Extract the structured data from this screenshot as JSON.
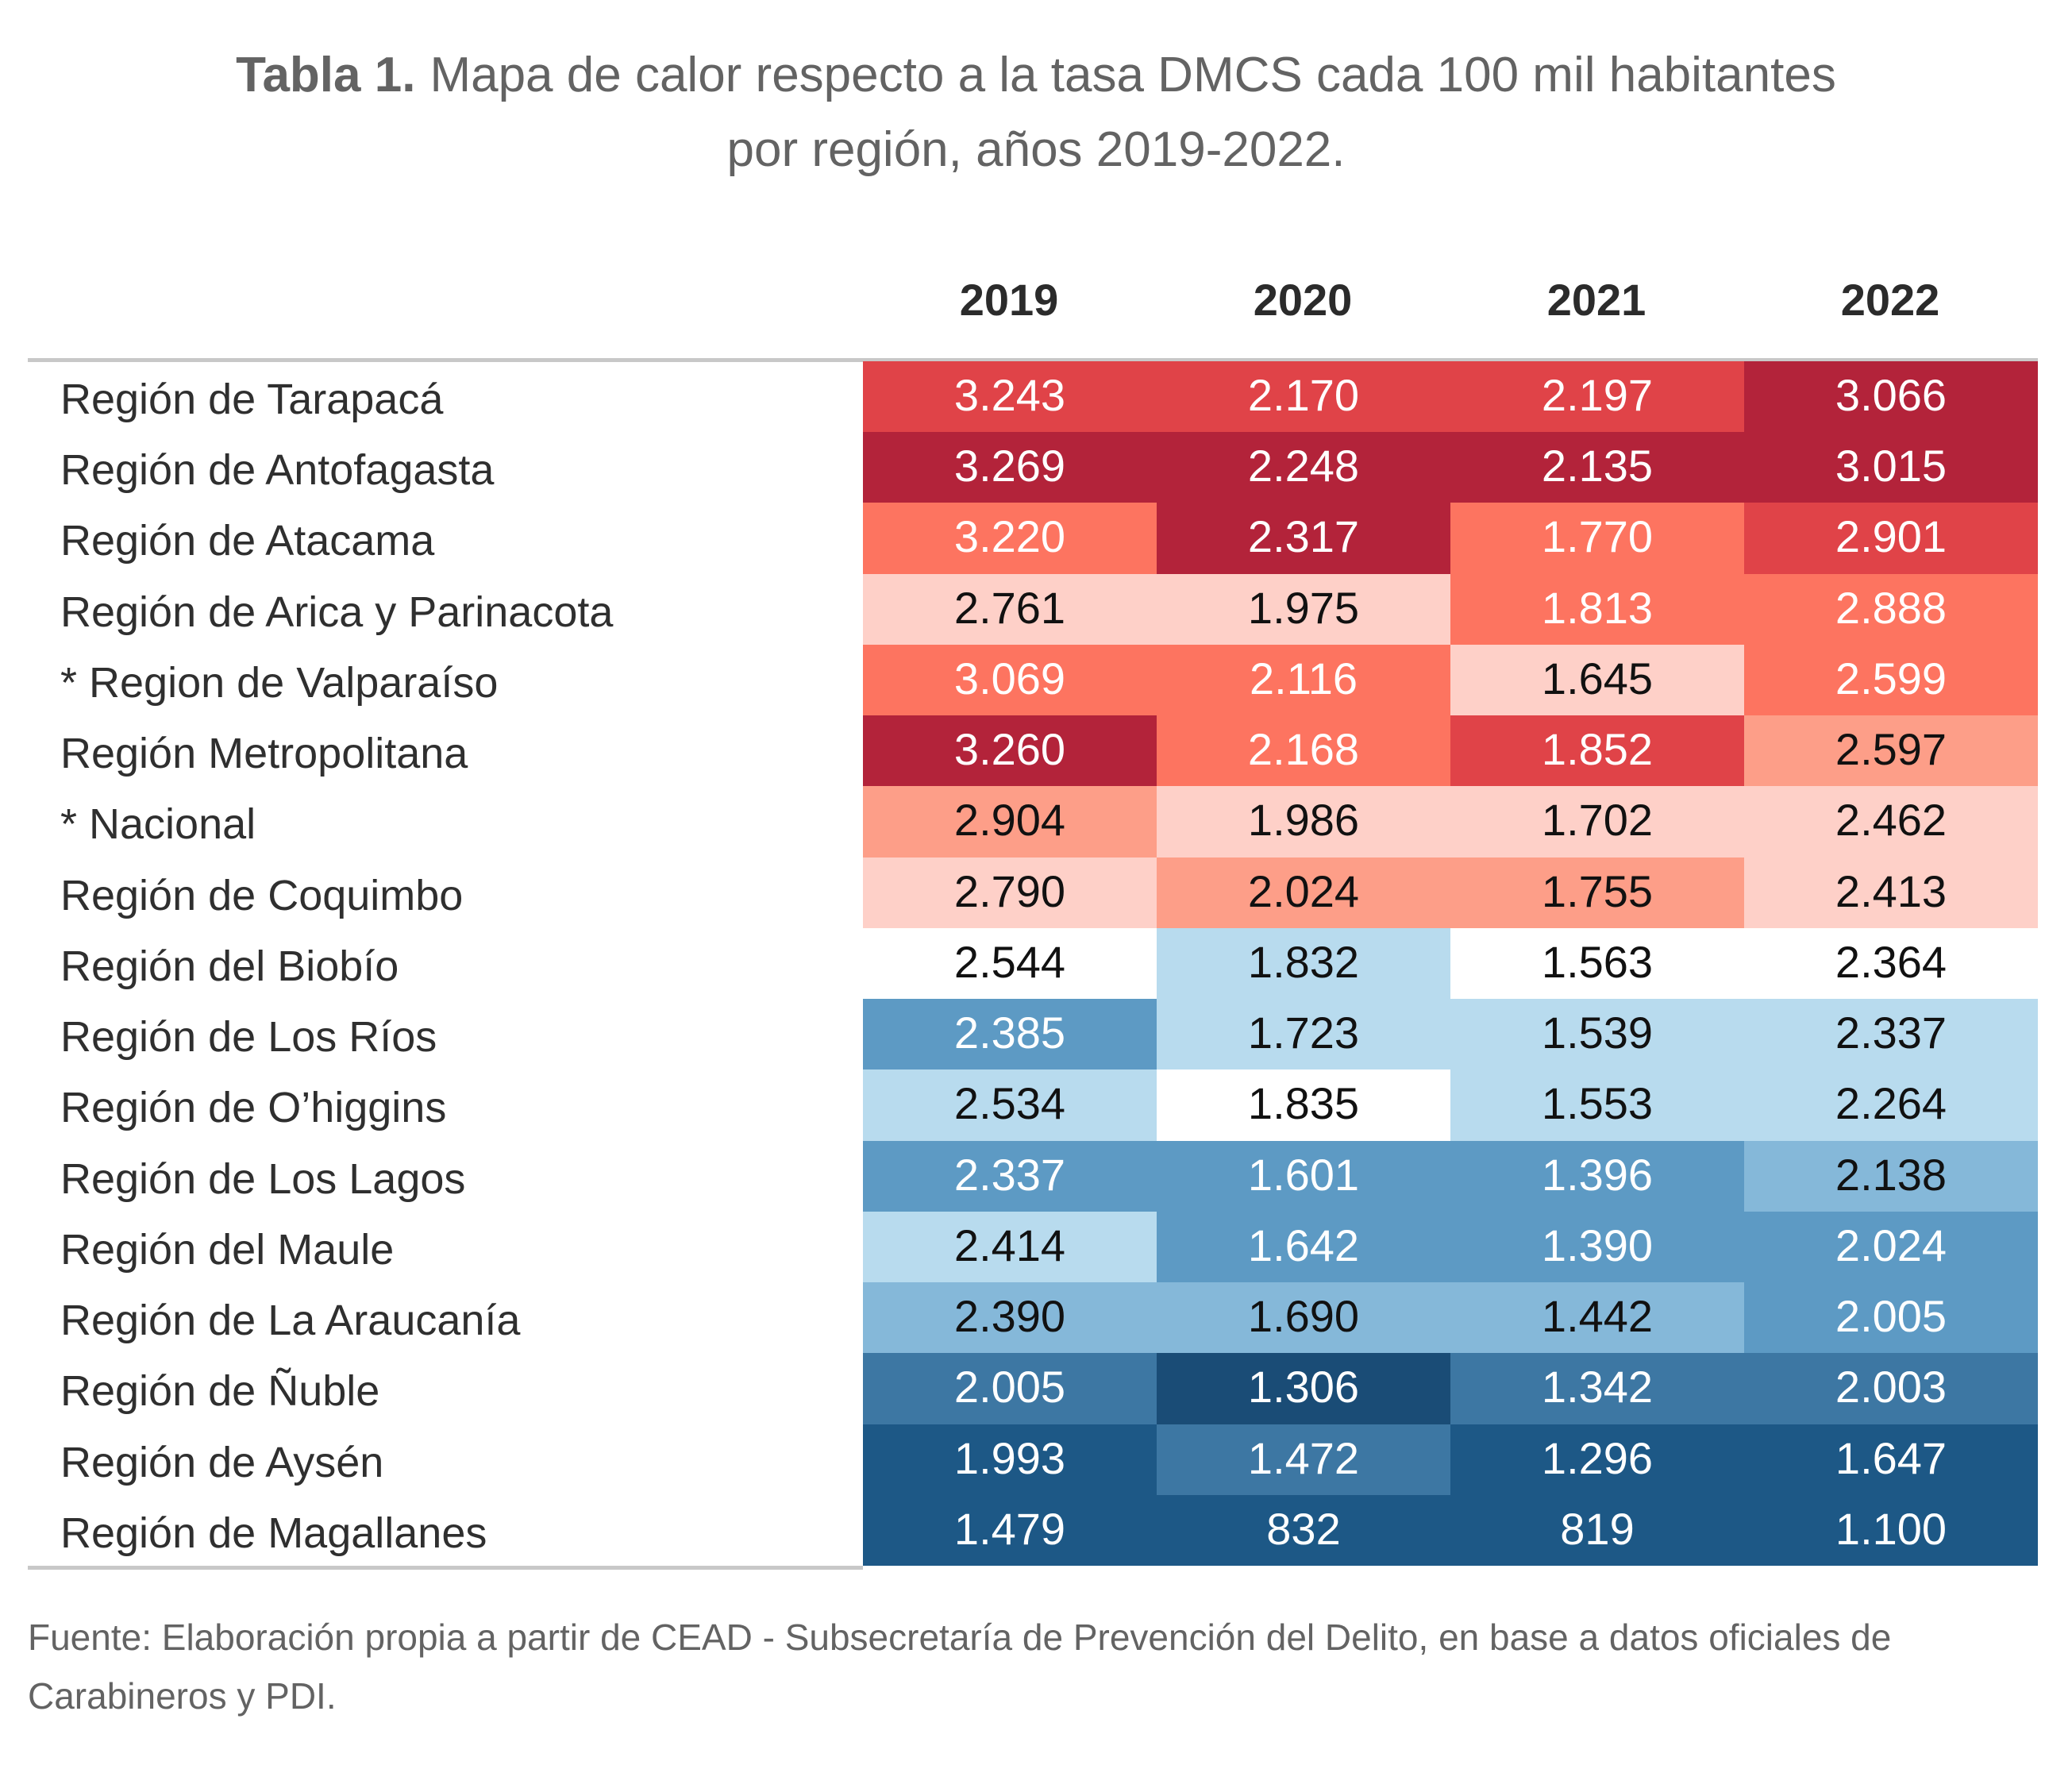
{
  "title": {
    "label": "Tabla 1.",
    "line1": "Mapa de calor respecto a la tasa DMCS cada 100 mil habitantes",
    "line2": "por región, años 2019-2022."
  },
  "source": "Fuente: Elaboración propia a partir de CEAD - Subsecretaría de Prevención del Delito, en base a datos oficiales de Carabineros y PDI.",
  "chart_data": {
    "type": "heatmap",
    "columns": [
      "2019",
      "2020",
      "2021",
      "2022"
    ],
    "rows": [
      "Región de Tarapacá",
      "Región de Antofagasta",
      "Región de Atacama",
      "Región de Arica y Parinacota",
      "* Region de Valparaíso",
      "Región Metropolitana",
      "* Nacional",
      "Región de Coquimbo",
      "Región del Biobío",
      "Región de Los Ríos",
      "Región de O’higgins",
      "Región de Los Lagos",
      "Región del Maule",
      "Región de La Araucanía",
      "Región de Ñuble",
      "Región de Aysén",
      "Región de Magallanes"
    ],
    "value_labels": [
      [
        "3.243",
        "2.170",
        "2.197",
        "3.066"
      ],
      [
        "3.269",
        "2.248",
        "2.135",
        "3.015"
      ],
      [
        "3.220",
        "2.317",
        "1.770",
        "2.901"
      ],
      [
        "2.761",
        "1.975",
        "1.813",
        "2.888"
      ],
      [
        "3.069",
        "2.116",
        "1.645",
        "2.599"
      ],
      [
        "3.260",
        "2.168",
        "1.852",
        "2.597"
      ],
      [
        "2.904",
        "1.986",
        "1.702",
        "2.462"
      ],
      [
        "2.790",
        "2.024",
        "1.755",
        "2.413"
      ],
      [
        "2.544",
        "1.832",
        "1.563",
        "2.364"
      ],
      [
        "2.385",
        "1.723",
        "1.539",
        "2.337"
      ],
      [
        "2.534",
        "1.835",
        "1.553",
        "2.264"
      ],
      [
        "2.337",
        "1.601",
        "1.396",
        "2.138"
      ],
      [
        "2.414",
        "1.642",
        "1.390",
        "2.024"
      ],
      [
        "2.390",
        "1.690",
        "1.442",
        "2.005"
      ],
      [
        "2.005",
        "1.306",
        "1.342",
        "2.003"
      ],
      [
        "1.993",
        "1.472",
        "1.296",
        "1.647"
      ],
      [
        "1.479",
        "832",
        "819",
        "1.100"
      ]
    ],
    "values": [
      [
        3243,
        2170,
        2197,
        3066
      ],
      [
        3269,
        2248,
        2135,
        3015
      ],
      [
        3220,
        2317,
        1770,
        2901
      ],
      [
        2761,
        1975,
        1813,
        2888
      ],
      [
        3069,
        2116,
        1645,
        2599
      ],
      [
        3260,
        2168,
        1852,
        2597
      ],
      [
        2904,
        1986,
        1702,
        2462
      ],
      [
        2790,
        2024,
        1755,
        2413
      ],
      [
        2544,
        1832,
        1563,
        2364
      ],
      [
        2385,
        1723,
        1539,
        2337
      ],
      [
        2534,
        1835,
        1553,
        2264
      ],
      [
        2337,
        1601,
        1396,
        2138
      ],
      [
        2414,
        1642,
        1390,
        2024
      ],
      [
        2390,
        1690,
        1442,
        2005
      ],
      [
        2005,
        1306,
        1342,
        2003
      ],
      [
        1993,
        1472,
        1296,
        1647
      ],
      [
        1479,
        832,
        819,
        1100
      ]
    ],
    "color_levels": [
      [
        6,
        6,
        6,
        7
      ],
      [
        7,
        7,
        7,
        7
      ],
      [
        5,
        7,
        5,
        6
      ],
      [
        3,
        3,
        5,
        5
      ],
      [
        5,
        5,
        3,
        5
      ],
      [
        7,
        5,
        6,
        4
      ],
      [
        4,
        3,
        3,
        3
      ],
      [
        3,
        4,
        4,
        3
      ],
      [
        0,
        -1,
        0,
        0
      ],
      [
        -3,
        -1,
        -1,
        -1
      ],
      [
        -1,
        0,
        -1,
        -1
      ],
      [
        -3,
        -3,
        -3,
        -2
      ],
      [
        -1,
        -3,
        -3,
        -3
      ],
      [
        -2,
        -2,
        -2,
        -3
      ],
      [
        -4,
        -6,
        -4,
        -4
      ],
      [
        -5,
        -4,
        -5,
        -5
      ],
      [
        -5,
        -5,
        -5,
        -5
      ]
    ],
    "palette": {
      "7": "#b3233a",
      "6": "#e04348",
      "5": "#fd7460",
      "4": "#fd9e88",
      "3": "#fed0c8",
      "0": "#ffffff",
      "-1": "#b8dbee",
      "-2": "#85b8d9",
      "-3": "#5d9ac4",
      "-4": "#3d77a3",
      "-5": "#1d5886",
      "-6": "#1a4c76"
    },
    "light_text_levels": [
      7,
      6,
      5,
      -3,
      -4,
      -5,
      -6
    ],
    "text_colors": {
      "light": "#ffffff",
      "dark": "#111111"
    },
    "grid_line_color": "#c8c8c8"
  }
}
